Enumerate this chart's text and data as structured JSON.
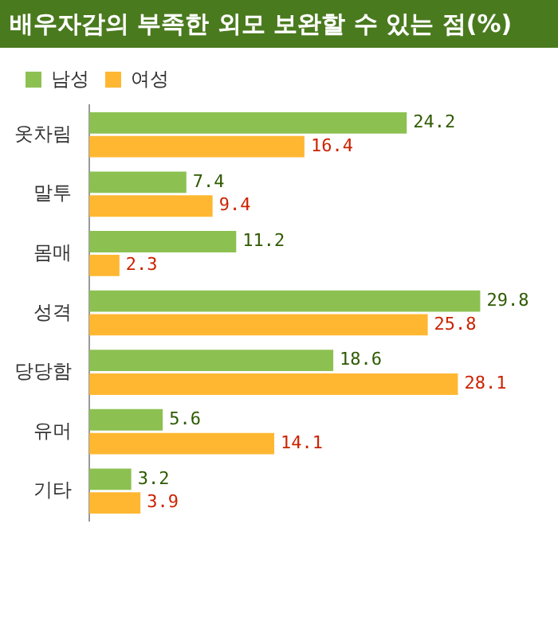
{
  "chart_data": {
    "type": "bar",
    "orientation": "horizontal",
    "title": "배우자감의 부족한 외모 보완할 수 있는 점(%)",
    "categories": [
      "옷차림",
      "말투",
      "몸매",
      "성격",
      "당당함",
      "유머",
      "기타"
    ],
    "series": [
      {
        "name": "남성",
        "color": "#8cc152",
        "values": [
          24.2,
          7.4,
          11.2,
          29.8,
          18.6,
          5.6,
          3.2
        ]
      },
      {
        "name": "여성",
        "color": "#ffb732",
        "values": [
          16.4,
          9.4,
          2.3,
          25.8,
          28.1,
          14.1,
          3.9
        ]
      }
    ],
    "data_labels": true,
    "legend": "top left",
    "grid": false
  }
}
